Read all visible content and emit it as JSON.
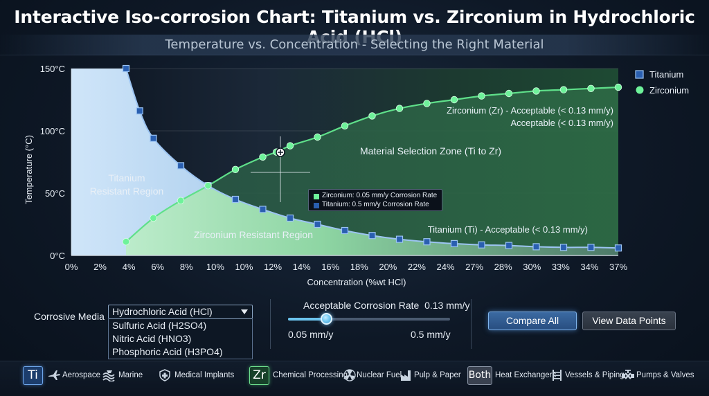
{
  "title": "Interactive Iso-corrosion Chart: Titanium vs. Zirconium in Hydrochloric Acid (HCl)",
  "subtitle": "Temperature vs. Concentration - Selecting the Right Material",
  "colors": {
    "titanium": "#2a5fb0",
    "titanium_edge": "#9cc4f2",
    "zirconium": "#6ef29a",
    "zirconium_line": "#5fe08a",
    "titanium_region": "#c4def6",
    "zirconium_region": "#b6f0c6"
  },
  "chart_data": {
    "type": "line",
    "xlabel": "Concentration (%wt HCl)",
    "ylabel": "Temperature (°C)",
    "x_tick_labels": [
      "0%",
      "2%",
      "4%",
      "6%",
      "8%",
      "10%",
      "10%",
      "12%",
      "14%",
      "16%",
      "18%",
      "20%",
      "22%",
      "24%",
      "27%",
      "28%",
      "30%",
      "33%",
      "34%",
      "37%"
    ],
    "y_tick_labels": [
      "0°C",
      "50°C",
      "100°C",
      "150°C"
    ],
    "ylim": [
      0,
      150
    ],
    "grid": true,
    "legend_position": "top-right",
    "series": [
      {
        "name": "Titanium",
        "marker": "square",
        "x_index": [
          4,
          5,
          6,
          8,
          10,
          12,
          14,
          16,
          18,
          20,
          22,
          24,
          26,
          28,
          30,
          32,
          34,
          36,
          38,
          40
        ],
        "y": [
          150,
          116,
          94,
          72,
          56,
          45,
          37,
          30,
          25,
          20,
          16,
          13,
          11,
          9.5,
          8.5,
          8,
          7,
          6.5,
          6.5,
          6
        ]
      },
      {
        "name": "Zirconium",
        "marker": "circle",
        "x_index": [
          4,
          6,
          8,
          10,
          12,
          14,
          15,
          16,
          18,
          20,
          22,
          24,
          26,
          28,
          30,
          32,
          34,
          36,
          38,
          40
        ],
        "y": [
          11,
          30,
          44,
          56,
          69,
          79,
          83,
          88,
          95,
          104,
          112,
          118,
          122,
          125,
          128,
          130,
          132,
          133,
          134,
          135
        ]
      }
    ],
    "regions": [
      "Titanium Resistant Region",
      "Zirconium Resistant Region",
      "Material Selection Zone (Ti to Zr)"
    ],
    "annotations": {
      "zr_acceptable": "Zirconium (Zr) - Acceptable (< 0.13 mm/y)",
      "zr_acceptable_2": "Acceptable (< 0.13 mm/y)",
      "ti_acceptable": "Titanium (Ti) - Acceptable (< 0.13 mm/y)"
    },
    "tooltip": {
      "zirconium": "Zirconium: 0.05 mm/y Corrosion Rate",
      "titanium": "Titanium: 0.5 mm/y Corrosion Rate"
    }
  },
  "controls": {
    "media_label": "Corrosive Media",
    "media_selected": "Hydrochloric Acid (HCl)",
    "media_options": [
      "Sulfuric Acid (H2SO4)",
      "Nitric Acid (HNO3)",
      "Phosphoric Acid (H3PO4)"
    ],
    "rate_label": "Acceptable Corrosion Rate",
    "rate_value": "0.13 mm/y",
    "slider_fraction": 0.24,
    "slider_min": "0.05 mm/y",
    "slider_max": "0.5 mm/y",
    "compare_label": "Compare All",
    "view_label": "View Data Points"
  },
  "applications": {
    "ti_badge": "Ti",
    "ti_items": [
      {
        "label": "Aerospace",
        "icon": "airplane-icon"
      },
      {
        "label": "Marine",
        "icon": "wave-icon"
      },
      {
        "label": "Medical Implants",
        "icon": "medical-shield-icon"
      }
    ],
    "zr_badge": "Zr",
    "zr_items": [
      {
        "label": "Chemical Processing",
        "icon": "flask-icon"
      },
      {
        "label": "Nuclear Fuel",
        "icon": "radiation-icon"
      },
      {
        "label": "Pulp & Paper",
        "icon": "factory-icon"
      }
    ],
    "both_badge": "Both",
    "both_items": [
      {
        "label": "Heat Exchangers",
        "icon": "heat-exchanger-icon"
      },
      {
        "label": "Vessels & Piping",
        "icon": "piping-icon"
      },
      {
        "label": "Pumps & Valves",
        "icon": "valve-icon"
      }
    ]
  }
}
